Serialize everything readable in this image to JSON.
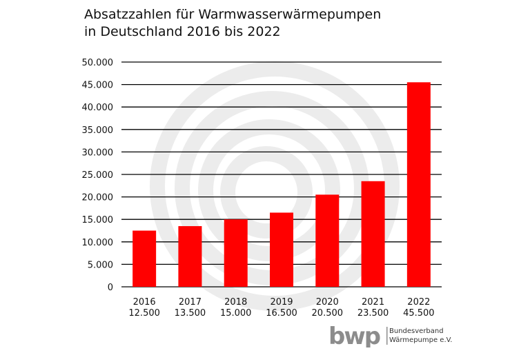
{
  "chart_data": {
    "type": "bar",
    "title_lines": [
      "Absatzzahlen für Warmwasserwärmepumpen",
      "in Deutschland 2016 bis 2022"
    ],
    "categories": [
      "2016",
      "2017",
      "2018",
      "2019",
      "2020",
      "2021",
      "2022"
    ],
    "category_values_text": [
      "12.500",
      "13.500",
      "15.000",
      "16.500",
      "20.500",
      "23.500",
      "45.500"
    ],
    "values": [
      12500,
      13500,
      15000,
      16500,
      20500,
      23500,
      45500
    ],
    "ylim": [
      0,
      50000
    ],
    "yticks": [
      0,
      5000,
      10000,
      15000,
      20000,
      25000,
      30000,
      35000,
      40000,
      45000,
      50000
    ],
    "ytick_labels": [
      "0",
      "5.000",
      "10.000",
      "15.000",
      "20.000",
      "25.000",
      "30.000",
      "35.000",
      "40.000",
      "45.000",
      "50.000"
    ],
    "grid": true,
    "bar_color": "#ff0000",
    "grid_color": "#000000",
    "watermark_color": "#ececec"
  },
  "logo": {
    "wordmark": "bwp",
    "line1": "Bundesverband",
    "line2": "Wärmepumpe e.V.",
    "color": "#8c8c8c"
  }
}
